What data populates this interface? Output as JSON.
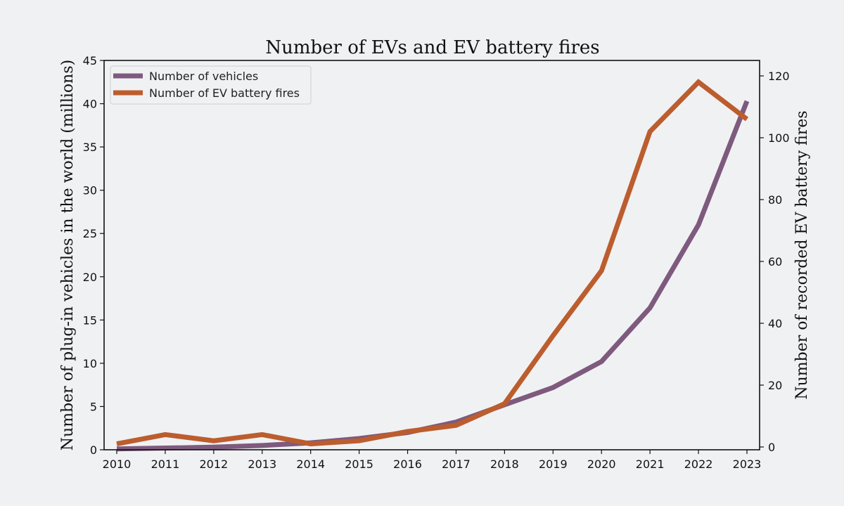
{
  "chart_data": {
    "type": "line",
    "title": "Number of EVs and EV battery fires",
    "xlabel": "",
    "ylabel": "Number of plug-in vehicles in the world (millions)",
    "y2label": "Number of recorded EV battery fires",
    "x": [
      2010,
      2011,
      2012,
      2013,
      2014,
      2015,
      2016,
      2017,
      2018,
      2019,
      2020,
      2021,
      2022,
      2023
    ],
    "x_tick_labels": [
      "2010",
      "2011",
      "2012",
      "2013",
      "2014",
      "2015",
      "2016",
      "2017",
      "2018",
      "2019",
      "2020",
      "2021",
      "2022",
      "2023"
    ],
    "ylim": [
      0,
      45
    ],
    "y_ticks": [
      0,
      5,
      10,
      15,
      20,
      25,
      30,
      35,
      40,
      45
    ],
    "y2lim": [
      0,
      125
    ],
    "y2_ticks": [
      0,
      20,
      40,
      60,
      80,
      100,
      120
    ],
    "legend_position": "top-left",
    "grid": false,
    "series": [
      {
        "name": "Number of vehicles",
        "axis": "left",
        "color": "#7e5a7e",
        "values": [
          0.1,
          0.2,
          0.3,
          0.5,
          0.8,
          1.3,
          2.0,
          3.2,
          5.2,
          7.2,
          10.2,
          16.4,
          26.0,
          40.3
        ]
      },
      {
        "name": "Number of EV battery fires",
        "axis": "right",
        "color": "#bc5d2e",
        "values": [
          1,
          4,
          2,
          4,
          1,
          2,
          5,
          7,
          14,
          36,
          57,
          102,
          118,
          106
        ]
      }
    ]
  }
}
